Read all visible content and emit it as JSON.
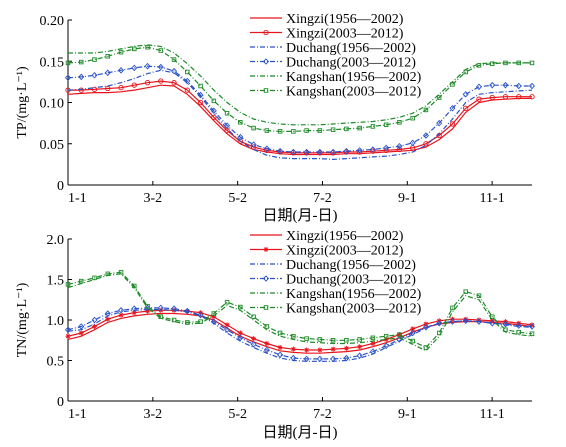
{
  "chart_data": [
    {
      "type": "line",
      "xlabel": "日期(月-日)",
      "ylabel": "TP/(mg·L⁻¹)",
      "ylim": [
        0,
        0.2
      ],
      "yticks": [
        "0",
        "0.05",
        "0.10",
        "0.15",
        "0.20"
      ],
      "xticks": [
        "1-1",
        "3-2",
        "5-2",
        "7-2",
        "9-1",
        "11-1"
      ],
      "grid": false,
      "legend_position": "top-right",
      "series": [
        {
          "name": "Xingzi(1956—2002)",
          "color": "#e8141c",
          "marker": "none",
          "dash": "solid",
          "values": [
            0.11,
            0.111,
            0.112,
            0.112,
            0.113,
            0.115,
            0.118,
            0.121,
            0.12,
            0.11,
            0.095,
            0.078,
            0.062,
            0.05,
            0.043,
            0.04,
            0.038,
            0.037,
            0.037,
            0.037,
            0.037,
            0.038,
            0.038,
            0.039,
            0.04,
            0.041,
            0.042,
            0.046,
            0.055,
            0.068,
            0.088,
            0.1,
            0.103,
            0.104,
            0.105,
            0.105
          ]
        },
        {
          "name": "Xingzi(2003—2012)",
          "color": "#e8141c",
          "marker": "circle",
          "dash": "solid",
          "values": [
            0.115,
            0.115,
            0.116,
            0.117,
            0.118,
            0.121,
            0.124,
            0.126,
            0.124,
            0.115,
            0.1,
            0.082,
            0.066,
            0.053,
            0.046,
            0.042,
            0.04,
            0.039,
            0.039,
            0.039,
            0.039,
            0.04,
            0.04,
            0.041,
            0.042,
            0.043,
            0.045,
            0.05,
            0.06,
            0.074,
            0.093,
            0.104,
            0.106,
            0.107,
            0.107,
            0.107
          ]
        },
        {
          "name": "Duchang(1956—2002)",
          "color": "#2a52c8",
          "marker": "none",
          "dash": "dashdot",
          "values": [
            0.115,
            0.116,
            0.118,
            0.12,
            0.124,
            0.129,
            0.135,
            0.139,
            0.136,
            0.124,
            0.107,
            0.087,
            0.068,
            0.053,
            0.043,
            0.036,
            0.033,
            0.032,
            0.032,
            0.032,
            0.031,
            0.032,
            0.033,
            0.034,
            0.035,
            0.037,
            0.04,
            0.048,
            0.062,
            0.08,
            0.1,
            0.11,
            0.112,
            0.113,
            0.114,
            0.115
          ]
        },
        {
          "name": "Duchang(2003—2012)",
          "color": "#2a52c8",
          "marker": "diamond",
          "dash": "dashdot",
          "values": [
            0.13,
            0.131,
            0.133,
            0.136,
            0.139,
            0.142,
            0.144,
            0.143,
            0.138,
            0.126,
            0.109,
            0.09,
            0.072,
            0.058,
            0.049,
            0.044,
            0.041,
            0.04,
            0.04,
            0.04,
            0.04,
            0.041,
            0.042,
            0.043,
            0.045,
            0.047,
            0.051,
            0.06,
            0.075,
            0.093,
            0.11,
            0.119,
            0.121,
            0.121,
            0.12,
            0.12
          ]
        },
        {
          "name": "Kangshan(1956—2002)",
          "color": "#1e8a28",
          "marker": "none",
          "dash": "dashdot",
          "values": [
            0.16,
            0.16,
            0.16,
            0.162,
            0.165,
            0.168,
            0.17,
            0.168,
            0.16,
            0.147,
            0.132,
            0.115,
            0.1,
            0.088,
            0.08,
            0.076,
            0.074,
            0.073,
            0.073,
            0.073,
            0.074,
            0.075,
            0.076,
            0.077,
            0.079,
            0.082,
            0.087,
            0.096,
            0.11,
            0.125,
            0.14,
            0.147,
            0.148,
            0.148,
            0.148,
            0.148
          ]
        },
        {
          "name": "Kangshan(2003—2012)",
          "color": "#1e8a28",
          "marker": "square",
          "dash": "dashdot",
          "values": [
            0.148,
            0.149,
            0.152,
            0.156,
            0.161,
            0.165,
            0.167,
            0.163,
            0.152,
            0.137,
            0.12,
            0.102,
            0.087,
            0.076,
            0.069,
            0.066,
            0.065,
            0.065,
            0.066,
            0.066,
            0.067,
            0.068,
            0.069,
            0.071,
            0.073,
            0.076,
            0.081,
            0.091,
            0.106,
            0.122,
            0.137,
            0.145,
            0.147,
            0.148,
            0.148,
            0.148
          ]
        }
      ]
    },
    {
      "type": "line",
      "xlabel": "日期(月-日)",
      "ylabel": "TN/(mg·L⁻¹)",
      "ylim": [
        0,
        2.0
      ],
      "yticks": [
        "0",
        "0.5",
        "1.0",
        "1.5",
        "2.0"
      ],
      "xticks": [
        "1-1",
        "3-2",
        "5-2",
        "7-2",
        "9-1",
        "11-1"
      ],
      "grid": false,
      "legend_position": "top-right",
      "series": [
        {
          "name": "Xingzi(1956—2002)",
          "color": "#e8141c",
          "marker": "none",
          "dash": "solid",
          "values": [
            0.76,
            0.8,
            0.88,
            0.97,
            1.02,
            1.05,
            1.07,
            1.08,
            1.08,
            1.07,
            1.05,
            1.0,
            0.9,
            0.8,
            0.73,
            0.67,
            0.62,
            0.6,
            0.59,
            0.59,
            0.6,
            0.61,
            0.63,
            0.67,
            0.72,
            0.78,
            0.85,
            0.91,
            0.95,
            0.97,
            0.98,
            0.98,
            0.97,
            0.96,
            0.94,
            0.92
          ]
        },
        {
          "name": "Xingzi(2003—2012)",
          "color": "#e8141c",
          "marker": "star",
          "dash": "solid",
          "values": [
            0.8,
            0.84,
            0.92,
            1.01,
            1.06,
            1.09,
            1.11,
            1.12,
            1.12,
            1.11,
            1.09,
            1.04,
            0.94,
            0.84,
            0.77,
            0.71,
            0.66,
            0.64,
            0.63,
            0.63,
            0.64,
            0.65,
            0.67,
            0.71,
            0.76,
            0.82,
            0.89,
            0.95,
            0.99,
            1.01,
            1.01,
            1.0,
            0.99,
            0.98,
            0.96,
            0.94
          ]
        },
        {
          "name": "Duchang(1956—2002)",
          "color": "#2a52c8",
          "marker": "none",
          "dash": "dashdot",
          "values": [
            0.86,
            0.88,
            0.95,
            1.05,
            1.1,
            1.12,
            1.13,
            1.13,
            1.12,
            1.1,
            1.05,
            0.96,
            0.84,
            0.74,
            0.66,
            0.59,
            0.53,
            0.5,
            0.49,
            0.49,
            0.49,
            0.5,
            0.53,
            0.58,
            0.66,
            0.74,
            0.82,
            0.9,
            0.96,
            0.98,
            0.99,
            0.98,
            0.96,
            0.94,
            0.92,
            0.91
          ]
        },
        {
          "name": "Duchang(2003—2012)",
          "color": "#2a52c8",
          "marker": "diamond",
          "dash": "dashdot",
          "values": [
            0.88,
            0.92,
            1.0,
            1.08,
            1.12,
            1.14,
            1.15,
            1.15,
            1.14,
            1.11,
            1.06,
            0.98,
            0.88,
            0.78,
            0.7,
            0.63,
            0.57,
            0.53,
            0.52,
            0.52,
            0.52,
            0.53,
            0.56,
            0.61,
            0.68,
            0.76,
            0.84,
            0.91,
            0.96,
            0.98,
            0.99,
            0.98,
            0.96,
            0.95,
            0.93,
            0.92
          ]
        },
        {
          "name": "Kangshan(1956—2002)",
          "color": "#1e8a28",
          "marker": "none",
          "dash": "dashdot",
          "values": [
            1.4,
            1.45,
            1.5,
            1.55,
            1.57,
            1.4,
            1.15,
            1.02,
            0.98,
            0.95,
            0.96,
            1.05,
            1.18,
            1.12,
            1.0,
            0.88,
            0.8,
            0.76,
            0.73,
            0.72,
            0.71,
            0.71,
            0.72,
            0.74,
            0.76,
            0.78,
            0.7,
            0.62,
            0.8,
            1.1,
            1.3,
            1.25,
            1.0,
            0.85,
            0.82,
            0.8
          ]
        },
        {
          "name": "Kangshan(2003—2012)",
          "color": "#1e8a28",
          "marker": "square",
          "dash": "dashdot",
          "values": [
            1.44,
            1.48,
            1.52,
            1.57,
            1.59,
            1.42,
            1.17,
            1.04,
            1.0,
            0.97,
            0.98,
            1.08,
            1.22,
            1.16,
            1.04,
            0.92,
            0.84,
            0.8,
            0.77,
            0.76,
            0.75,
            0.75,
            0.76,
            0.78,
            0.8,
            0.82,
            0.74,
            0.66,
            0.84,
            1.15,
            1.35,
            1.3,
            1.04,
            0.88,
            0.85,
            0.83
          ]
        }
      ]
    }
  ]
}
